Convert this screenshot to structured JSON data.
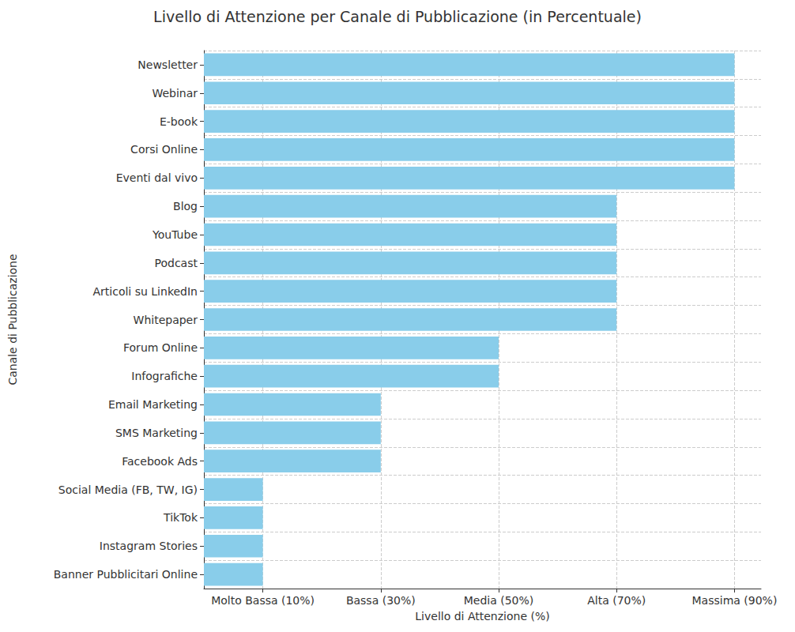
{
  "chart_data": {
    "type": "bar",
    "orientation": "horizontal",
    "title": "Livello di Attenzione per Canale di Pubblicazione (in Percentuale)",
    "x_label": "Livello di Attenzione (%)",
    "y_label": "Canale di Pubblicazione",
    "categories": [
      "Newsletter",
      "Webinar",
      "E-book",
      "Corsi Online",
      "Eventi dal vivo",
      "Blog",
      "YouTube",
      "Podcast",
      "Articoli su LinkedIn",
      "Whitepaper",
      "Forum Online",
      "Infografiche",
      "Email Marketing",
      "SMS Marketing",
      "Facebook Ads",
      "Social Media (FB, TW, IG)",
      "TikTok",
      "Instagram Stories",
      "Banner Pubblicitari Online"
    ],
    "values": [
      90,
      90,
      90,
      90,
      90,
      70,
      70,
      70,
      70,
      70,
      50,
      50,
      30,
      30,
      30,
      10,
      10,
      10,
      10
    ],
    "color": "#89cdea",
    "xlim": [
      0,
      94.5
    ],
    "xticks": [
      {
        "value": 10,
        "label": "Molto Bassa (10%)"
      },
      {
        "value": 30,
        "label": "Bassa (30%)"
      },
      {
        "value": 50,
        "label": "Media (50%)"
      },
      {
        "value": 70,
        "label": "Alta (70%)"
      },
      {
        "value": 90,
        "label": "Massima (90%)"
      }
    ],
    "grid": true
  }
}
